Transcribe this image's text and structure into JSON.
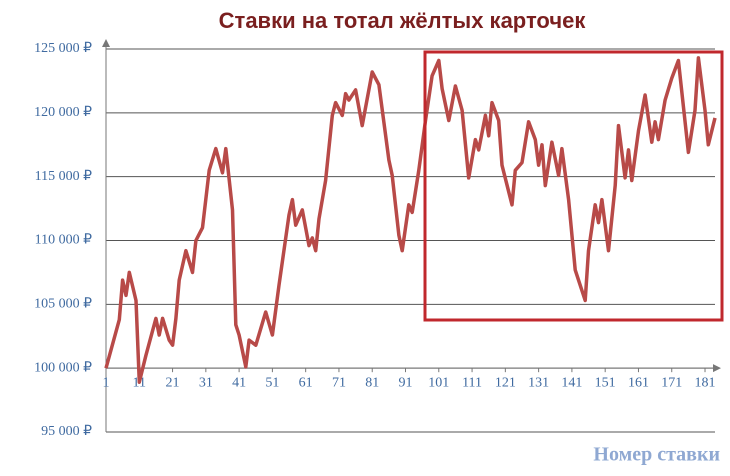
{
  "chart_data": {
    "type": "line",
    "title": "Ставки на тотал жёлтых карточек",
    "x_label": "Номер ставки",
    "x": [
      1,
      5,
      6,
      7,
      8,
      10,
      11,
      13,
      16,
      17,
      18,
      20,
      21,
      22,
      23,
      25,
      27,
      28,
      30,
      32,
      34,
      36,
      37,
      39,
      40,
      41,
      43,
      44,
      46,
      49,
      51,
      53,
      56,
      57,
      58,
      60,
      62,
      63,
      64,
      65,
      67,
      69,
      70,
      72,
      73,
      74,
      76,
      78,
      81,
      83,
      86,
      87,
      89,
      90,
      92,
      93,
      95,
      97,
      99,
      101,
      102,
      104,
      106,
      108,
      110,
      112,
      113,
      115,
      116,
      117,
      119,
      120,
      123,
      124,
      126,
      128,
      130,
      131,
      132,
      133,
      135,
      137,
      138,
      140,
      142,
      145,
      146,
      148,
      149,
      150,
      152,
      154,
      155,
      157,
      158,
      159,
      161,
      163,
      165,
      166,
      167,
      169,
      171,
      173,
      176,
      178,
      179,
      181,
      182,
      184
    ],
    "values": [
      100000,
      103800,
      106900,
      105700,
      107500,
      105300,
      98900,
      101000,
      103900,
      102600,
      103900,
      102200,
      101800,
      103900,
      106900,
      109200,
      107500,
      110000,
      111000,
      115500,
      117200,
      115300,
      117200,
      112400,
      103400,
      102600,
      100100,
      102200,
      101800,
      104400,
      102600,
      106500,
      112000,
      113200,
      111200,
      112400,
      109600,
      110200,
      109200,
      111700,
      114700,
      119800,
      120800,
      119800,
      121500,
      121000,
      121800,
      119000,
      123200,
      122200,
      116300,
      115100,
      110400,
      109200,
      112800,
      112200,
      115500,
      119400,
      122900,
      124100,
      121900,
      119400,
      122100,
      120200,
      114900,
      117900,
      117100,
      119800,
      118200,
      120800,
      119400,
      115900,
      112800,
      115500,
      116100,
      119300,
      117900,
      115900,
      117500,
      114300,
      117700,
      115100,
      117200,
      113200,
      107700,
      105300,
      109200,
      112800,
      111400,
      113200,
      109200,
      114300,
      119000,
      114900,
      117100,
      114700,
      118600,
      121400,
      117700,
      119300,
      117900,
      121000,
      122700,
      124100,
      116900,
      120200,
      124300,
      120200,
      117500,
      119600
    ],
    "color": "#b84a48",
    "xlim": [
      1,
      184
    ],
    "ylim": [
      95000,
      125000
    ],
    "x_axis_at": 100000,
    "xticks": [
      1,
      11,
      21,
      31,
      41,
      51,
      61,
      71,
      81,
      91,
      101,
      111,
      121,
      131,
      141,
      151,
      161,
      171,
      181
    ],
    "yticks": [
      {
        "value": 95000,
        "label": "95 000 ₽"
      },
      {
        "value": 100000,
        "label": "100 000 ₽"
      },
      {
        "value": 105000,
        "label": "105 000 ₽"
      },
      {
        "value": 110000,
        "label": "110 000 ₽"
      },
      {
        "value": 115000,
        "label": "115 000 ₽"
      },
      {
        "value": 120000,
        "label": "120 000 ₽"
      },
      {
        "value": 125000,
        "label": "125 000 ₽"
      }
    ],
    "grid": true
  }
}
